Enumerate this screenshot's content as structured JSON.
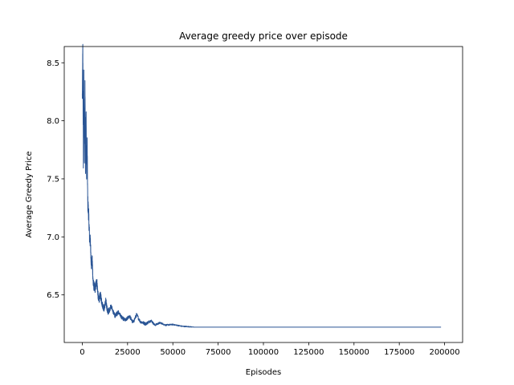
{
  "chart_data": {
    "type": "line",
    "title": "Average greedy price over episode",
    "xlabel": "Episodes",
    "ylabel": "Average Greedy Price",
    "xlim": [
      -9950,
      209950
    ],
    "ylim": [
      6.09,
      8.64
    ],
    "xticks": [
      0,
      25000,
      50000,
      75000,
      100000,
      125000,
      150000,
      175000,
      200000
    ],
    "xtick_labels": [
      "0",
      "25000",
      "50000",
      "75000",
      "100000",
      "125000",
      "150000",
      "175000",
      "200000"
    ],
    "yticks": [
      6.5,
      7.0,
      7.5,
      8.0,
      8.5
    ],
    "ytick_labels": [
      "6.5",
      "7.0",
      "7.5",
      "8.0",
      "8.5"
    ],
    "grid": false,
    "legend": "none",
    "series": [
      {
        "color": "#2a5595",
        "x": [
          0,
          300,
          600,
          900,
          1200,
          1500,
          1800,
          2100,
          2400,
          2700,
          3000,
          3500,
          4000,
          4500,
          5000,
          5500,
          6000,
          7000,
          8000,
          9000,
          10000,
          11000,
          12000,
          13000,
          14000,
          16000,
          18000,
          20000,
          22000,
          24000,
          26000,
          28000,
          30000,
          32000,
          35000,
          38000,
          40000,
          43000,
          46000,
          50000,
          55000,
          60000,
          62000,
          70000,
          100000,
          150000,
          200000
        ],
        "y": [
          8.2,
          8.58,
          7.7,
          8.35,
          7.65,
          8.3,
          7.6,
          8.05,
          7.5,
          7.8,
          7.3,
          7.2,
          7.0,
          6.95,
          6.75,
          6.8,
          6.6,
          6.55,
          6.62,
          6.45,
          6.5,
          6.42,
          6.38,
          6.45,
          6.35,
          6.4,
          6.32,
          6.35,
          6.3,
          6.28,
          6.32,
          6.26,
          6.33,
          6.27,
          6.25,
          6.28,
          6.24,
          6.26,
          6.24,
          6.245,
          6.23,
          6.225,
          6.222,
          6.222,
          6.222,
          6.222,
          6.222
        ],
        "noise": [
          0.2,
          0.3,
          0.25,
          0.25,
          0.2,
          0.22,
          0.2,
          0.22,
          0.18,
          0.16,
          0.14,
          0.13,
          0.12,
          0.1,
          0.09,
          0.1,
          0.08,
          0.07,
          0.08,
          0.06,
          0.06,
          0.05,
          0.05,
          0.05,
          0.05,
          0.04,
          0.04,
          0.035,
          0.03,
          0.03,
          0.03,
          0.03,
          0.03,
          0.025,
          0.025,
          0.02,
          0.018,
          0.015,
          0.012,
          0.01,
          0.008,
          0.006,
          0,
          0,
          0,
          0,
          0
        ]
      }
    ]
  }
}
